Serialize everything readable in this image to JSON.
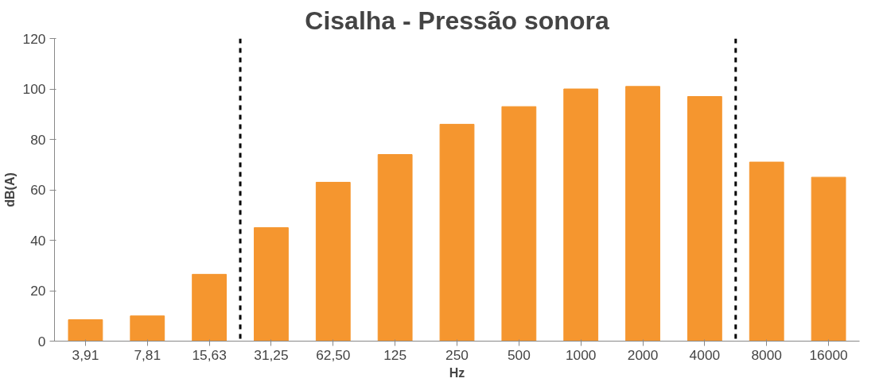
{
  "chart_data": {
    "type": "bar",
    "title": "Cisalha - Pressão sonora",
    "xlabel": "Hz",
    "ylabel": "dB(A)",
    "categories": [
      "3,91",
      "7,81",
      "15,63",
      "31,25",
      "62,50",
      "125",
      "250",
      "500",
      "1000",
      "2000",
      "4000",
      "8000",
      "16000"
    ],
    "values": [
      8.5,
      10,
      26.5,
      45,
      63,
      74,
      86,
      93,
      100,
      101,
      97,
      71,
      65
    ],
    "color": "#f5962f",
    "ylim": [
      0,
      120
    ],
    "yticks": [
      0,
      20,
      40,
      60,
      80,
      100,
      120
    ],
    "grid": false
  }
}
